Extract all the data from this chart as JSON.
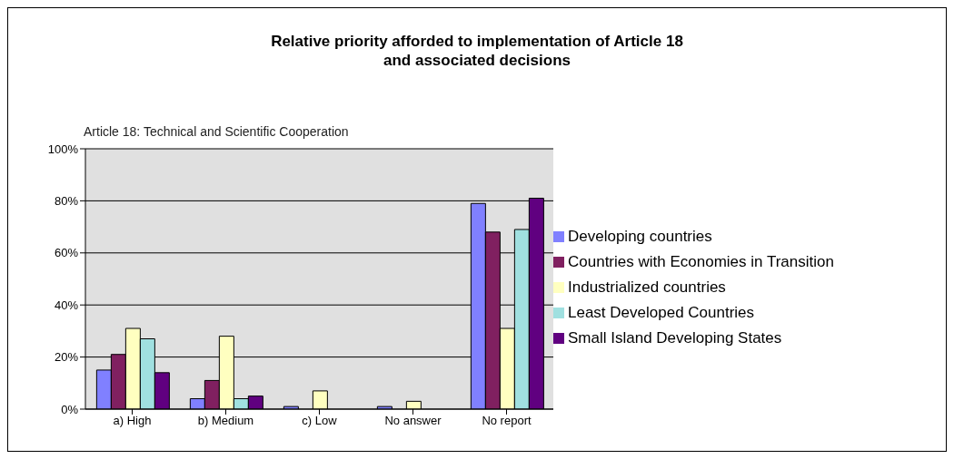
{
  "chart_data": {
    "type": "bar",
    "title": "Relative priority afforded to implementation of Article 18\nand associated decisions",
    "subtitle": "Article 18: Technical and Scientific Cooperation",
    "categories": [
      "a) High",
      "b) Medium",
      "c) Low",
      "No answer",
      "No report"
    ],
    "series": [
      {
        "name": "Developing countries",
        "color": "#8080ff",
        "values": [
          15,
          4,
          1,
          1,
          79
        ]
      },
      {
        "name": "Countries with Economies in Transition",
        "color": "#802060",
        "values": [
          21,
          11,
          0,
          0,
          68
        ]
      },
      {
        "name": "Industrialized countries",
        "color": "#ffffc0",
        "values": [
          31,
          28,
          7,
          3,
          31
        ]
      },
      {
        "name": "Least Developed Countries",
        "color": "#a0e0e0",
        "values": [
          27,
          4,
          0,
          0,
          69
        ]
      },
      {
        "name": "Small Island Developing States",
        "color": "#600080",
        "values": [
          14,
          5,
          0,
          0,
          81
        ]
      }
    ],
    "ylim": [
      0,
      100
    ],
    "yticks": [
      {
        "value": 0,
        "label": "0%"
      },
      {
        "value": 20,
        "label": "20%"
      },
      {
        "value": 40,
        "label": "40%"
      },
      {
        "value": 60,
        "label": "60%"
      },
      {
        "value": 80,
        "label": "80%"
      },
      {
        "value": 100,
        "label": "100%"
      }
    ],
    "grid": "y",
    "legend": "right"
  }
}
